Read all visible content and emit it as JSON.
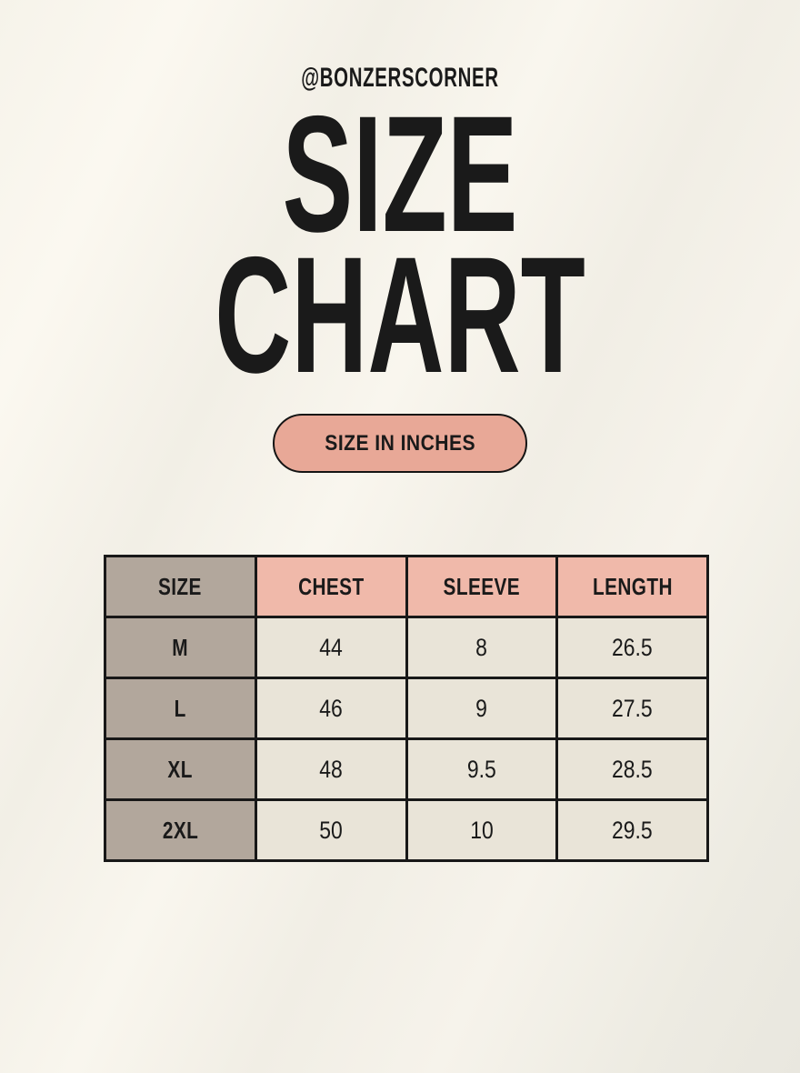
{
  "header": {
    "handle": "@BONZERSCORNER",
    "title_line1": "SIZE",
    "title_line2": "CHART",
    "badge": "SIZE IN INCHES"
  },
  "table": {
    "headers": [
      "SIZE",
      "CHEST",
      "SLEEVE",
      "LENGTH"
    ],
    "rows": [
      [
        "M",
        "44",
        "8",
        "26.5"
      ],
      [
        "L",
        "46",
        "9",
        "27.5"
      ],
      [
        "XL",
        "48",
        "9.5",
        "28.5"
      ],
      [
        "2XL",
        "50",
        "10",
        "29.5"
      ]
    ]
  },
  "chart_data": {
    "type": "table",
    "title": "SIZE CHART",
    "subtitle": "SIZE IN INCHES",
    "unit": "inches",
    "columns": [
      "SIZE",
      "CHEST",
      "SLEEVE",
      "LENGTH"
    ],
    "rows": [
      {
        "SIZE": "M",
        "CHEST": 44,
        "SLEEVE": 8,
        "LENGTH": 26.5
      },
      {
        "SIZE": "L",
        "CHEST": 46,
        "SLEEVE": 9,
        "LENGTH": 27.5
      },
      {
        "SIZE": "XL",
        "CHEST": 48,
        "SLEEVE": 9.5,
        "LENGTH": 28.5
      },
      {
        "SIZE": "2XL",
        "CHEST": 50,
        "SLEEVE": 10,
        "LENGTH": 29.5
      }
    ]
  },
  "colors": {
    "background": "#f4f1e8",
    "badge_fill": "#e8a897",
    "header_pink": "#f0b9aa",
    "label_taupe": "#b2a79c",
    "cell_cream": "#e9e4d8",
    "border": "#181818",
    "text": "#1a1a1a"
  }
}
